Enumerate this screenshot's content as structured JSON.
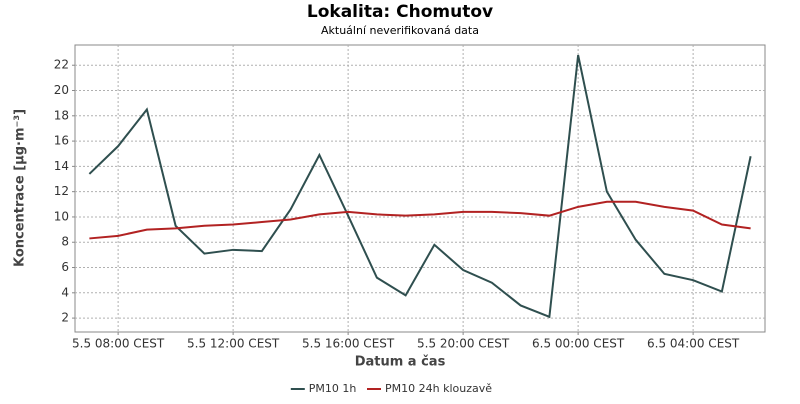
{
  "chart_data": {
    "type": "line",
    "title": "Lokalita: Chomutov",
    "subtitle": "Aktuální neverifikovaná data",
    "x_label": "Datum a čas",
    "y_label": "Koncentrace [µg·m⁻³]",
    "categories": [
      null,
      "5.5 08:00 CEST",
      null,
      null,
      null,
      "5.5 12:00 CEST",
      null,
      null,
      null,
      "5.5 16:00 CEST",
      null,
      null,
      null,
      "5.5 20:00 CEST",
      null,
      null,
      null,
      "6.5 00:00 CEST",
      null,
      null,
      null,
      "6.5 04:00 CEST",
      null,
      null
    ],
    "series": [
      {
        "name": "PM10 1h",
        "color": "#2f4f4f",
        "values": [
          13.4,
          15.6,
          18.5,
          9.3,
          7.1,
          7.4,
          7.3,
          10.6,
          14.9,
          10.1,
          5.2,
          3.8,
          7.8,
          5.8,
          4.8,
          3.0,
          2.1,
          22.8,
          12.0,
          8.2,
          5.5,
          5.0,
          4.1,
          14.8
        ]
      },
      {
        "name": "PM10 24h klouzavě",
        "color": "#b22222",
        "values": [
          8.3,
          8.5,
          9.0,
          9.1,
          9.3,
          9.4,
          9.6,
          9.8,
          10.2,
          10.4,
          10.2,
          10.1,
          10.2,
          10.4,
          10.4,
          10.3,
          10.1,
          10.8,
          11.2,
          11.2,
          10.8,
          10.5,
          9.4,
          9.1
        ]
      }
    ],
    "ylim": [
      0.9,
      23.6
    ],
    "yticks": [
      2,
      4,
      6,
      8,
      10,
      12,
      14,
      16,
      18,
      20,
      22
    ],
    "grid": true,
    "legend": "bottom"
  }
}
